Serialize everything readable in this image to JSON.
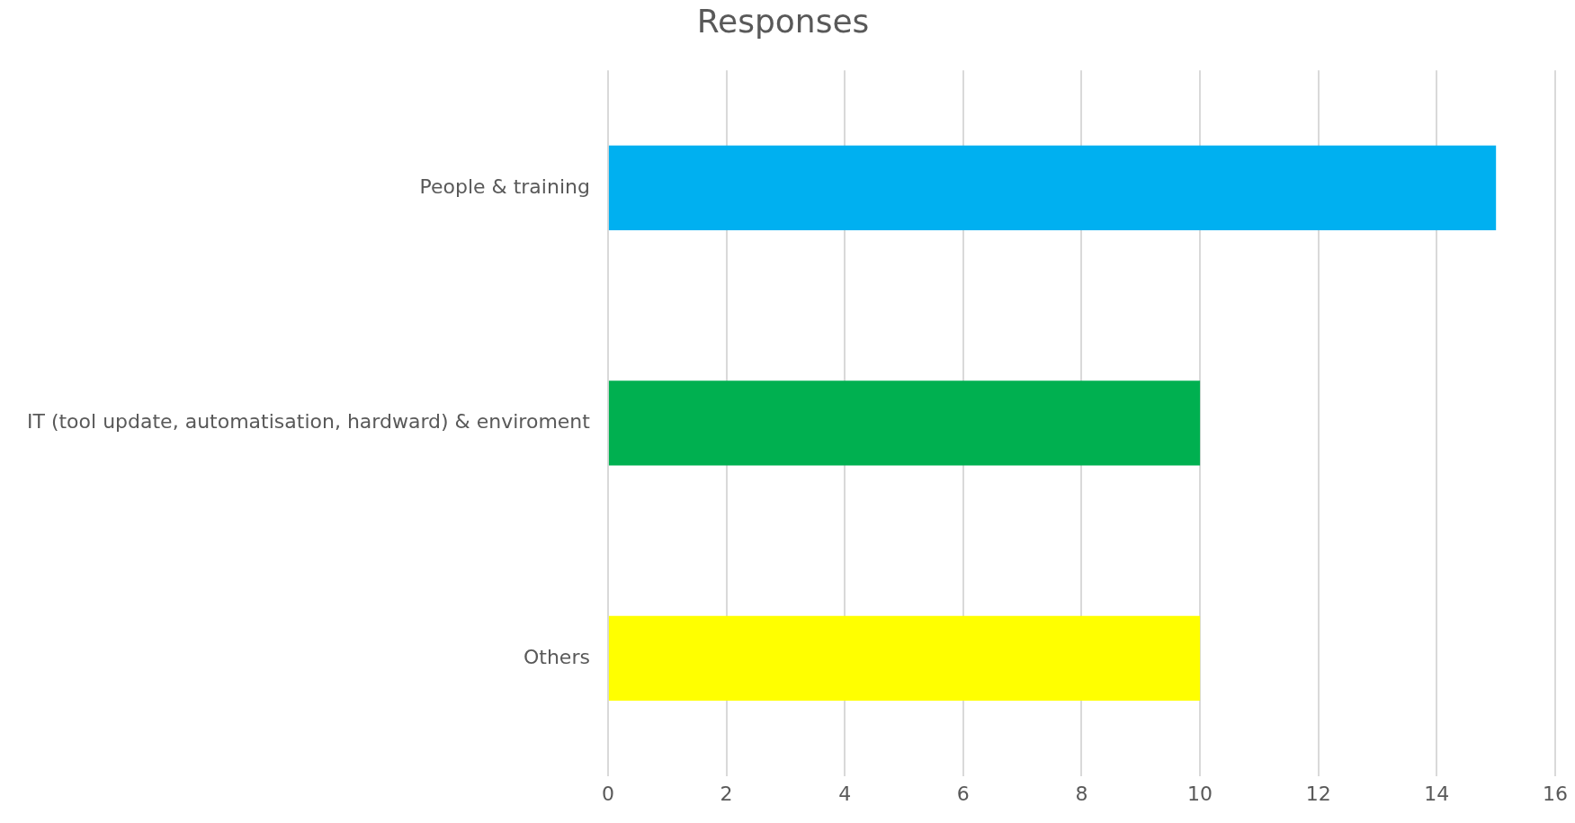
{
  "chart_data": {
    "type": "bar",
    "orientation": "horizontal",
    "title": "Responses",
    "categories": [
      "People & training",
      "IT (tool update, automatisation, hardward) & enviroment",
      "Others"
    ],
    "values": [
      15,
      10,
      10
    ],
    "colors": [
      "#00b0f0",
      "#00b050",
      "#ffff00"
    ],
    "xlim": [
      0,
      16
    ],
    "xticks": [
      0,
      2,
      4,
      6,
      8,
      10,
      12,
      14,
      16
    ],
    "grid": "x",
    "legend": false
  }
}
